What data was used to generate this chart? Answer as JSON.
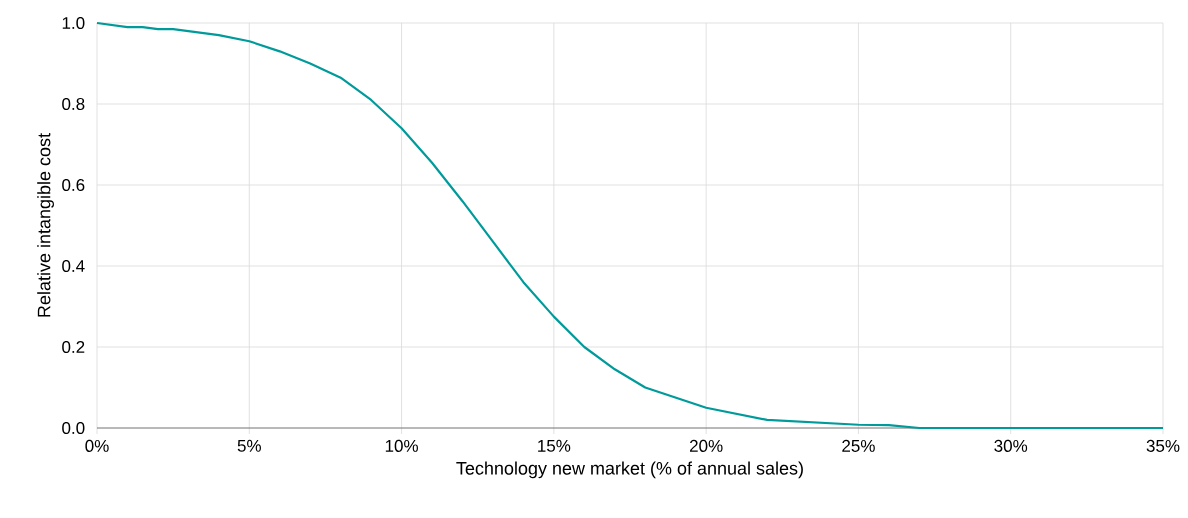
{
  "chart_data": {
    "type": "line",
    "xlabel": "Technology new market (% of annual sales)",
    "ylabel": "Relative intangible cost",
    "x": [
      0,
      1,
      1.5,
      2,
      2.5,
      3,
      4,
      5,
      6,
      7,
      8,
      9,
      10,
      11,
      12,
      13,
      14,
      15,
      16,
      17,
      18,
      19,
      20,
      21,
      22,
      23,
      24,
      25,
      26,
      27,
      28,
      29,
      30,
      31,
      32,
      33,
      34,
      35
    ],
    "series": [
      {
        "color": "#009a9a",
        "values": [
          1.0,
          0.99,
          0.99,
          0.985,
          0.985,
          0.98,
          0.97,
          0.955,
          0.93,
          0.9,
          0.865,
          0.81,
          0.74,
          0.655,
          0.56,
          0.46,
          0.36,
          0.275,
          0.2,
          0.145,
          0.1,
          0.075,
          0.05,
          0.035,
          0.02,
          0.016,
          0.012,
          0.008,
          0.007,
          0.0,
          0.0,
          0.0,
          0.0,
          0.0,
          0.0,
          0.0,
          0.0,
          0.0
        ]
      }
    ],
    "xlim": [
      0,
      35
    ],
    "xticks": [
      {
        "value": 0,
        "label": "0%"
      },
      {
        "value": 5,
        "label": "5%"
      },
      {
        "value": 10,
        "label": "10%"
      },
      {
        "value": 15,
        "label": "15%"
      },
      {
        "value": 20,
        "label": "20%"
      },
      {
        "value": 25,
        "label": "25%"
      },
      {
        "value": 30,
        "label": "30%"
      },
      {
        "value": 35,
        "label": "35%"
      }
    ],
    "ylim": [
      0,
      1
    ],
    "yticks": [
      {
        "value": 0,
        "label": "0.0"
      },
      {
        "value": 0.2,
        "label": "0.2"
      },
      {
        "value": 0.4,
        "label": "0.4"
      },
      {
        "value": 0.6,
        "label": "0.6"
      },
      {
        "value": 0.8,
        "label": "0.8"
      },
      {
        "value": 1,
        "label": "1.0"
      }
    ],
    "grid": true,
    "marker": "none",
    "line_style": "solid"
  }
}
